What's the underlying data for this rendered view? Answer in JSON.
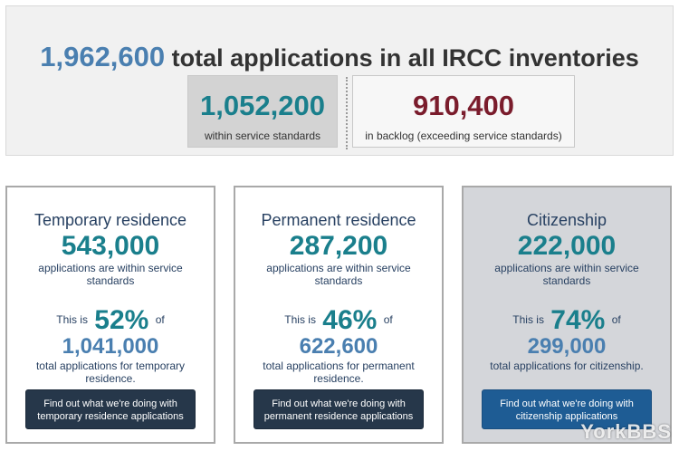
{
  "summary": {
    "total_number": "1,962,600",
    "total_text": "total applications in all IRCC inventories",
    "within": {
      "number": "1,052,200",
      "label": "within service standards"
    },
    "backlog": {
      "number": "910,400",
      "label": "in backlog (exceeding service standards)"
    }
  },
  "cards": [
    {
      "title": "Temporary residence",
      "within_number": "543,000",
      "within_text": "applications are within service standards",
      "pct_prefix": "This is",
      "pct": "52%",
      "pct_suffix": "of",
      "total_number": "1,041,000",
      "total_text": "total applications for temporary residence.",
      "button": "Find out what we're doing with temporary residence applications"
    },
    {
      "title": "Permanent residence",
      "within_number": "287,200",
      "within_text": "applications are within service standards",
      "pct_prefix": "This is",
      "pct": "46%",
      "pct_suffix": "of",
      "total_number": "622,600",
      "total_text": "total applications for permanent residence.",
      "button": "Find out what we're doing with permanent residence applications"
    },
    {
      "title": "Citizenship",
      "within_number": "222,000",
      "within_text": "applications are within service standards",
      "pct_prefix": "This is",
      "pct": "74%",
      "pct_suffix": "of",
      "total_number": "299,000",
      "total_text": "total applications for citizenship.",
      "button": "Find out what we're doing with citizenship applications"
    }
  ],
  "watermark": "YorkBBS",
  "colors": {
    "accent_teal": "#1a7f8c",
    "accent_blue": "#4a7fb0",
    "backlog_red": "#7a1c2c",
    "button_dark": "#26374a",
    "button_blue": "#1e5c94"
  }
}
